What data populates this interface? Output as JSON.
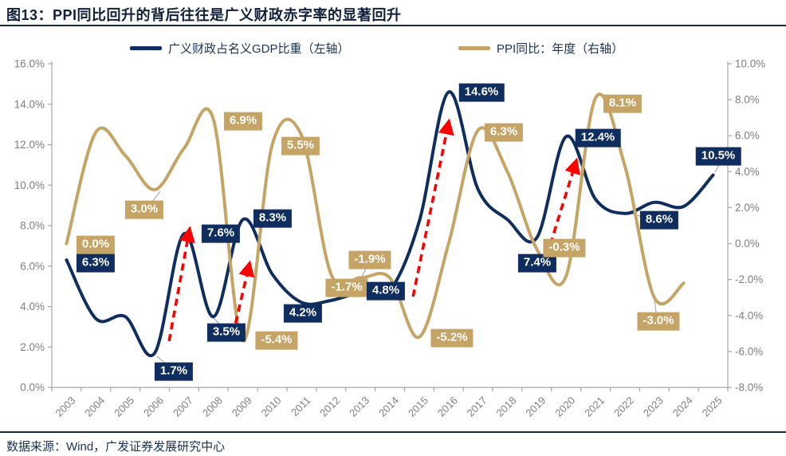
{
  "title": "图13：PPI同比回升的背后往往是广义财政赤字率的显著回升",
  "footer": "数据来源：Wind，广发证券发展研究中心",
  "colors": {
    "navy": "#0f2e5f",
    "tan": "#c6a465",
    "red": "#fe0000",
    "axis_line": "#a6a6a6",
    "axis_text": "#7f7f7f",
    "leader": "#9b9b9b",
    "heading": "#1a2747"
  },
  "legend": [
    {
      "key": "deficit",
      "label": "广义财政占名义GDP比重（左轴）",
      "color_key": "navy"
    },
    {
      "key": "ppi",
      "label": "PPI同比：年度（右轴）",
      "color_key": "tan"
    }
  ],
  "chart_data": {
    "type": "line",
    "x": [
      2003,
      2004,
      2005,
      2006,
      2007,
      2008,
      2009,
      2010,
      2011,
      2012,
      2013,
      2014,
      2015,
      2016,
      2017,
      2018,
      2019,
      2020,
      2021,
      2022,
      2023,
      2024,
      2025
    ],
    "series": [
      {
        "key": "deficit",
        "name": "广义财政占名义GDP比重（左轴）",
        "axis": "left",
        "color_key": "navy",
        "values": [
          6.3,
          3.4,
          3.5,
          1.7,
          7.6,
          3.5,
          8.3,
          5.6,
          4.2,
          4.3,
          4.7,
          4.8,
          8.2,
          14.6,
          9.8,
          8.3,
          7.4,
          12.4,
          9.3,
          8.6,
          9.15,
          8.95,
          10.5
        ]
      },
      {
        "key": "ppi",
        "name": "PPI同比：年度（右轴）",
        "axis": "right",
        "color_key": "tan",
        "values": [
          0.0,
          6.2,
          4.9,
          3.0,
          5.3,
          6.9,
          -5.4,
          5.5,
          6.0,
          -1.7,
          -1.9,
          -1.9,
          -5.2,
          0.0,
          6.3,
          4.0,
          -0.3,
          -1.8,
          8.1,
          4.3,
          -3.0,
          -2.2,
          null
        ]
      }
    ],
    "left_axis": {
      "min": 0,
      "max": 16,
      "ticks": [
        "16.0%",
        "14.0%",
        "12.0%",
        "10.0%",
        "8.0%",
        "6.0%",
        "4.0%",
        "2.0%",
        "0.0%"
      ]
    },
    "right_axis": {
      "min": -8,
      "max": 10,
      "ticks": [
        "10.0%",
        "8.0%",
        "6.0%",
        "4.0%",
        "2.0%",
        "0.0%",
        "-2.0%",
        "-4.0%",
        "-6.0%",
        "-8.0%"
      ]
    },
    "x_ticks": [
      "2003",
      "2004",
      "2005",
      "2006",
      "2007",
      "2008",
      "2009",
      "2010",
      "2011",
      "2012",
      "2013",
      "2014",
      "2015",
      "2016",
      "2017",
      "2018",
      "2019",
      "2020",
      "2021",
      "2022",
      "2023",
      "2024",
      "2025"
    ],
    "data_labels": [
      {
        "series": "ppi",
        "year": 2003,
        "text": "0.0%"
      },
      {
        "series": "deficit",
        "year": 2003,
        "text": "6.3%"
      },
      {
        "series": "ppi",
        "year": 2006,
        "text": "3.0%"
      },
      {
        "series": "deficit",
        "year": 2006,
        "text": "1.7%"
      },
      {
        "series": "deficit",
        "year": 2007,
        "text": "7.6%"
      },
      {
        "series": "ppi",
        "year": 2008,
        "text": "6.9%"
      },
      {
        "series": "deficit",
        "year": 2008,
        "text": "3.5%"
      },
      {
        "series": "deficit",
        "year": 2009,
        "text": "8.3%"
      },
      {
        "series": "ppi",
        "year": 2009,
        "text": "-5.4%"
      },
      {
        "series": "ppi",
        "year": 2010,
        "text": "5.5%"
      },
      {
        "series": "deficit",
        "year": 2011,
        "text": "4.2%"
      },
      {
        "series": "ppi",
        "year": 2012,
        "text": "-1.7%"
      },
      {
        "series": "ppi",
        "year": 2013,
        "text": "-1.9%"
      },
      {
        "series": "deficit",
        "year": 2014,
        "text": "4.8%"
      },
      {
        "series": "ppi",
        "year": 2015,
        "text": "-5.2%"
      },
      {
        "series": "deficit",
        "year": 2016,
        "text": "14.6%"
      },
      {
        "series": "ppi",
        "year": 2017,
        "text": "6.3%"
      },
      {
        "series": "deficit",
        "year": 2019,
        "text": "7.4%"
      },
      {
        "series": "ppi",
        "year": 2019,
        "text": "-0.3%"
      },
      {
        "series": "deficit",
        "year": 2020,
        "text": "12.4%"
      },
      {
        "series": "ppi",
        "year": 2021,
        "text": "8.1%"
      },
      {
        "series": "deficit",
        "year": 2022,
        "text": "8.6%"
      },
      {
        "series": "ppi",
        "year": 2023,
        "text": "-3.0%"
      },
      {
        "series": "deficit",
        "year": 2025,
        "text": "10.5%"
      }
    ],
    "arrows": [
      {
        "x1": 2006.49,
        "v1": 2.29,
        "x2": 2007.19,
        "v2": 7.84
      },
      {
        "x1": 2008.66,
        "v1": 2.6,
        "x2": 2009.23,
        "v2": 6.15
      },
      {
        "x1": 2014.79,
        "v1": 4.49,
        "x2": 2016.01,
        "v2": 13.16
      },
      {
        "x1": 2019.34,
        "v1": 6.5,
        "x2": 2020.35,
        "v2": 11.23
      }
    ]
  }
}
